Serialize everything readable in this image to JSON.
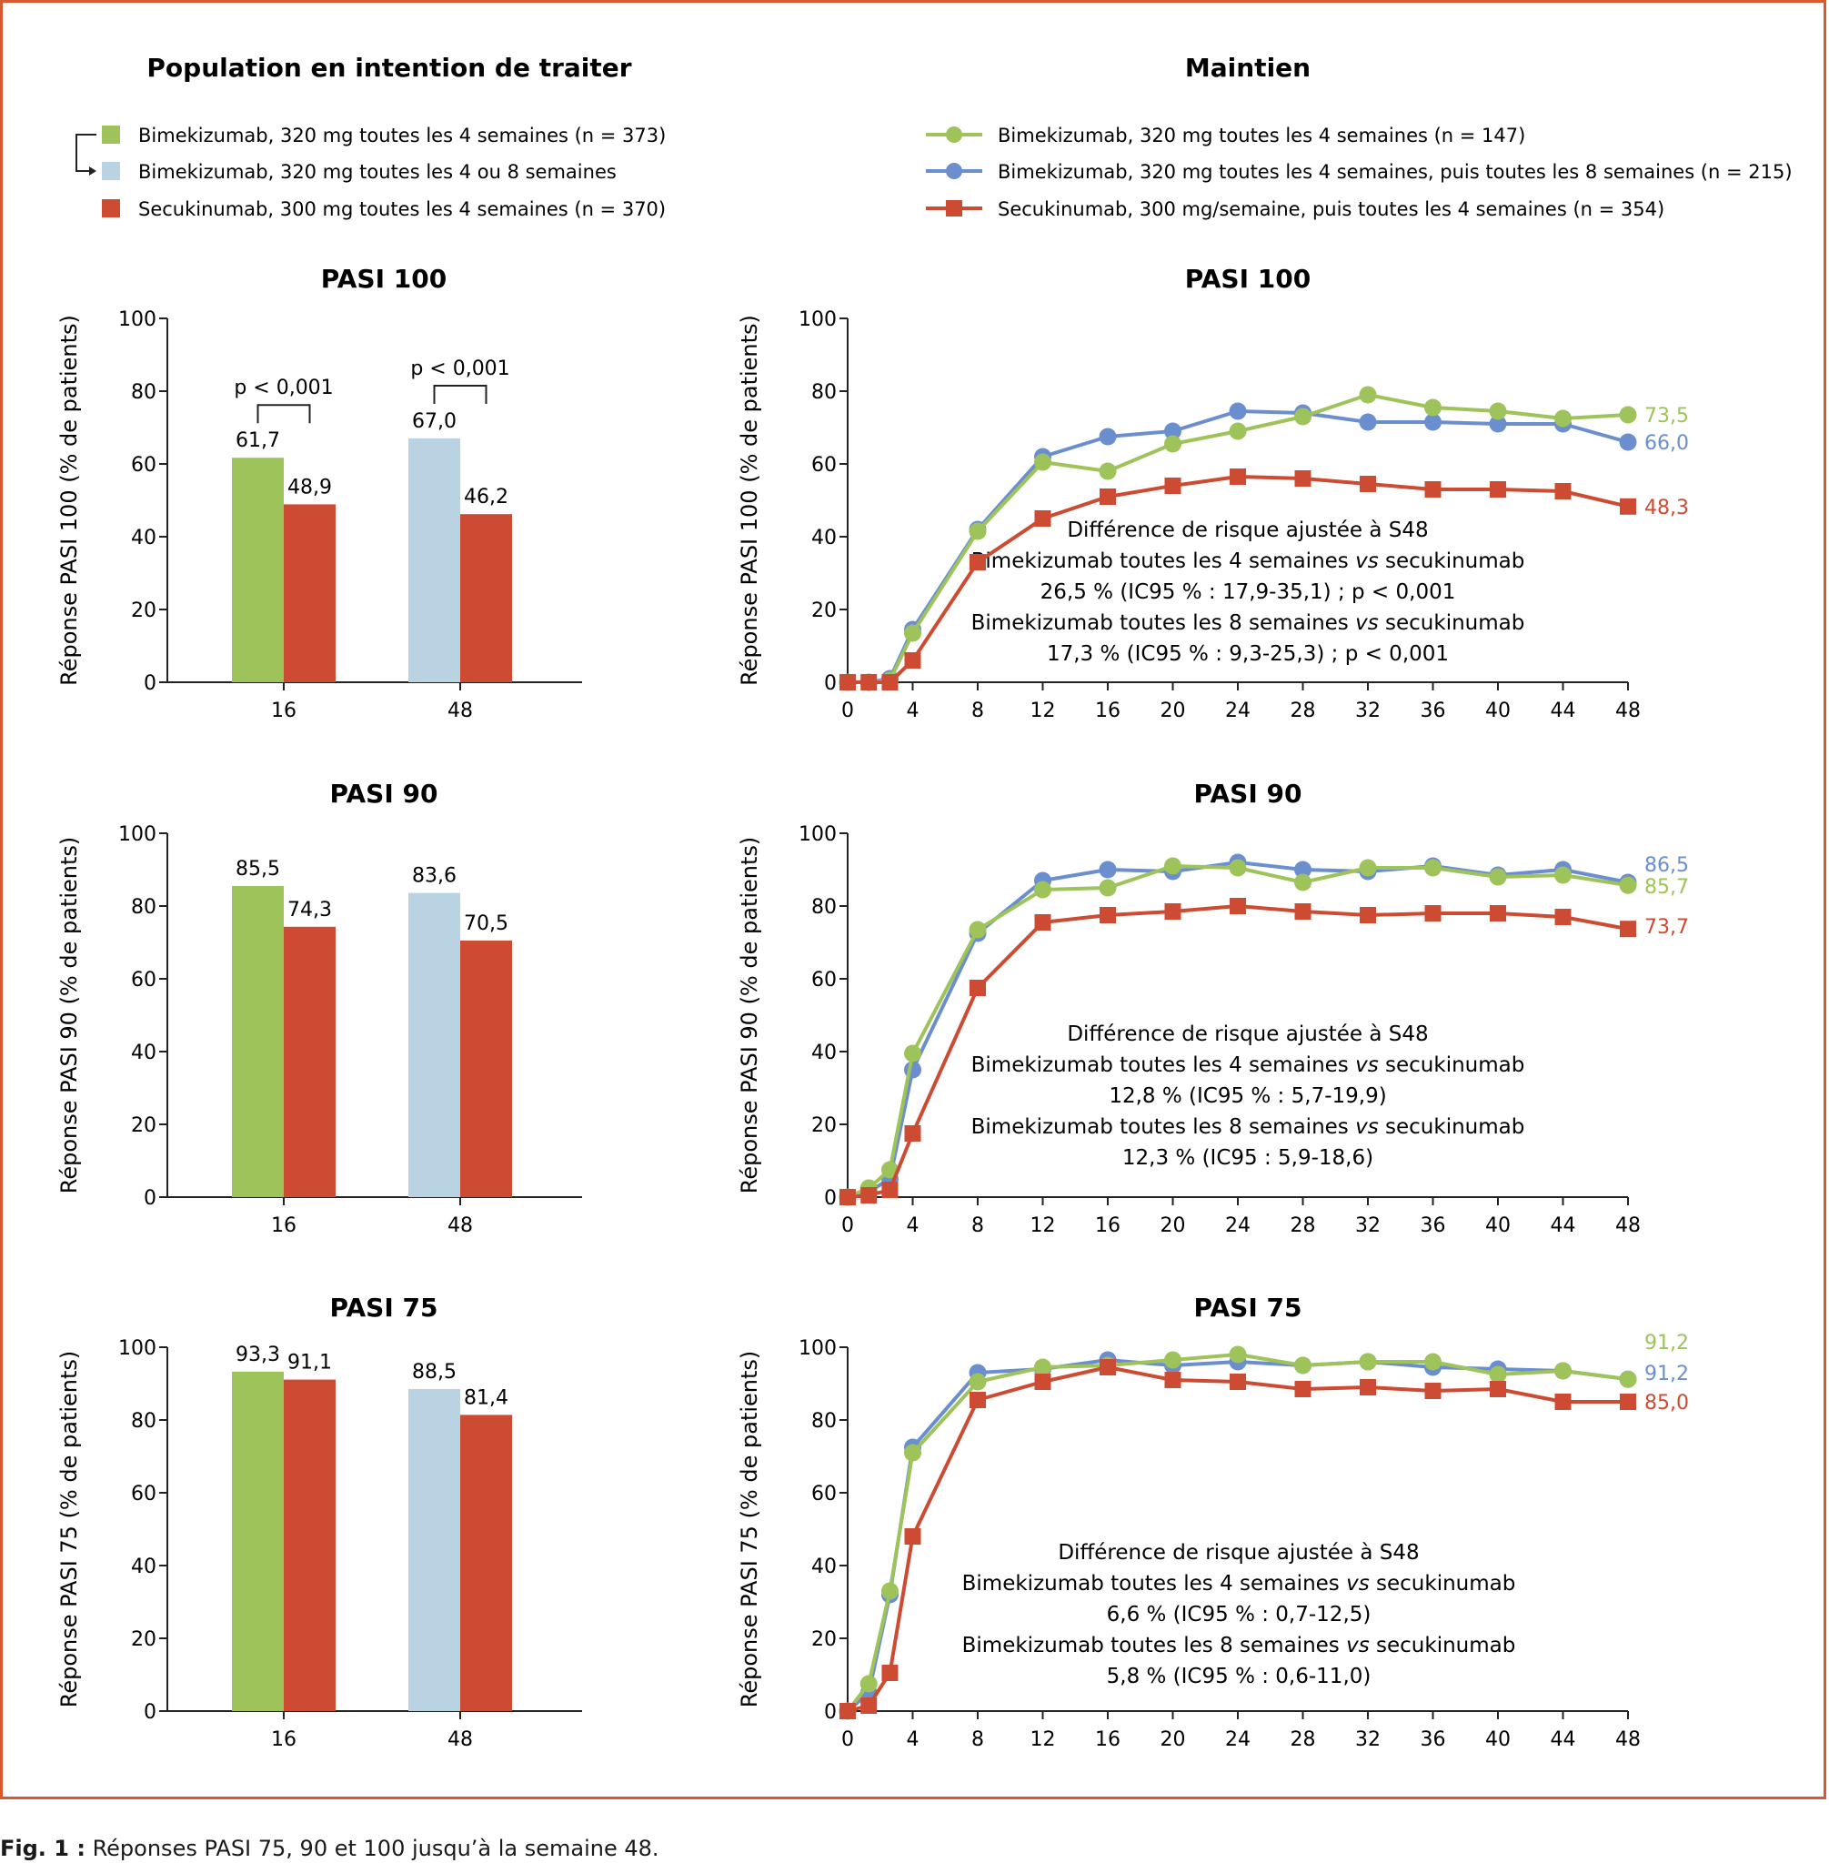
{
  "caption": {
    "prefix": "Fig. 1 :",
    "text": " Réponses PASI 75, 90 et 100 jusqu’à la semaine 48."
  },
  "colors": {
    "green": "#9dc35a",
    "lightblue": "#b9d3e3",
    "red": "#cc4b32",
    "blue": "#6b8fce",
    "frame": "#d8582f"
  },
  "left_header": {
    "title": "Population en intention de traiter",
    "legend": [
      "Bimekizumab, 320 mg toutes les 4 semaines (n = 373)",
      "Bimekizumab, 320 mg toutes les 4 ou 8 semaines",
      "Secukinumab, 300 mg toutes les 4 semaines (n = 370)"
    ]
  },
  "right_header": {
    "title": "Maintien",
    "legend": [
      "Bimekizumab, 320 mg toutes les 4 semaines (n = 147)",
      "Bimekizumab, 320 mg toutes les 4 semaines, puis toutes les 8 semaines (n = 215)",
      "Secukinumab, 300 mg/semaine, puis toutes les 4 semaines (n = 354)"
    ]
  },
  "chart_data": [
    {
      "type": "bar",
      "title": "PASI 100",
      "ylabel": "Réponse PASI 100 (% de patients)",
      "ylim": [
        0,
        100
      ],
      "yticks": [
        0,
        20,
        40,
        60,
        80,
        100
      ],
      "categories": [
        "16",
        "48"
      ],
      "series": [
        {
          "name": "Bimekizumab",
          "values": [
            61.7,
            67.0
          ],
          "labels": [
            "61,7",
            "67,0"
          ],
          "colors": [
            "green",
            "lightblue"
          ]
        },
        {
          "name": "Secukinumab",
          "values": [
            48.9,
            46.2
          ],
          "labels": [
            "48,9",
            "46,2"
          ],
          "colors": [
            "red",
            "red"
          ]
        }
      ],
      "pvalues": [
        "p < 0,001",
        "p < 0,001"
      ]
    },
    {
      "type": "line",
      "title": "PASI 100",
      "ylabel": "Réponse PASI 100 (% de patients)",
      "ylim": [
        0,
        100
      ],
      "yticks": [
        0,
        20,
        40,
        60,
        80,
        100
      ],
      "xlim": [
        0,
        48
      ],
      "xticks": [
        0,
        4,
        8,
        12,
        16,
        20,
        24,
        28,
        32,
        36,
        40,
        44,
        48
      ],
      "series": [
        {
          "name": "blue",
          "color": "blue",
          "marker": "circle",
          "x": [
            0,
            1.3,
            2.6,
            4,
            8,
            12,
            16,
            20,
            24,
            28,
            32,
            36,
            40,
            44,
            48
          ],
          "y": [
            0,
            0,
            1,
            14.5,
            42,
            62,
            67.5,
            69,
            74.5,
            74,
            71.5,
            71.5,
            71,
            71,
            66
          ]
        },
        {
          "name": "green",
          "color": "green",
          "marker": "circle",
          "x": [
            0,
            1.3,
            2.6,
            4,
            8,
            12,
            16,
            20,
            24,
            28,
            32,
            36,
            40,
            44,
            48
          ],
          "y": [
            0,
            0,
            0.5,
            13.5,
            41.5,
            60.5,
            58,
            65.5,
            69,
            73,
            79,
            75.5,
            74.5,
            72.5,
            73.5
          ]
        },
        {
          "name": "red",
          "color": "red",
          "marker": "square",
          "x": [
            0,
            1.3,
            2.6,
            4,
            8,
            12,
            16,
            20,
            24,
            28,
            32,
            36,
            40,
            44,
            48
          ],
          "y": [
            0,
            0,
            0,
            6,
            33,
            45,
            51,
            54,
            56.5,
            56,
            54.5,
            53,
            53,
            52.5,
            48.3
          ]
        }
      ],
      "end_labels": [
        {
          "text": "73,5",
          "color": "green",
          "y": 73.5
        },
        {
          "text": "66,0",
          "color": "blue",
          "y": 66.0
        },
        {
          "text": "48,3",
          "color": "red",
          "y": 48.3
        }
      ],
      "annotation": [
        "Différence de risque ajustée à S48",
        "Bimekizumab toutes les 4 semaines *vs* secukinumab",
        "26,5 % (IC95 % : 17,9-35,1) ; p < 0,001",
        "Bimekizumab toutes les 8 semaines *vs* secukinumab",
        "17,3 % (IC95 % : 9,3-25,3) ; p < 0,001"
      ]
    },
    {
      "type": "bar",
      "title": "PASI 90",
      "ylabel": "Réponse PASI 90 (% de patients)",
      "ylim": [
        0,
        100
      ],
      "yticks": [
        0,
        20,
        40,
        60,
        80,
        100
      ],
      "categories": [
        "16",
        "48"
      ],
      "series": [
        {
          "name": "Bimekizumab",
          "values": [
            85.5,
            83.6
          ],
          "labels": [
            "85,5",
            "83,6"
          ],
          "colors": [
            "green",
            "lightblue"
          ]
        },
        {
          "name": "Secukinumab",
          "values": [
            74.3,
            70.5
          ],
          "labels": [
            "74,3",
            "70,5"
          ],
          "colors": [
            "red",
            "red"
          ]
        }
      ]
    },
    {
      "type": "line",
      "title": "PASI 90",
      "ylabel": "Réponse PASI 90 (% de patients)",
      "ylim": [
        0,
        100
      ],
      "yticks": [
        0,
        20,
        40,
        60,
        80,
        100
      ],
      "xlim": [
        0,
        48
      ],
      "xticks": [
        0,
        4,
        8,
        12,
        16,
        20,
        24,
        28,
        32,
        36,
        40,
        44,
        48
      ],
      "series": [
        {
          "name": "blue",
          "color": "blue",
          "marker": "circle",
          "x": [
            0,
            1.3,
            2.6,
            4,
            8,
            12,
            16,
            20,
            24,
            28,
            32,
            36,
            40,
            44,
            48
          ],
          "y": [
            0,
            1.5,
            5,
            35,
            72.5,
            87,
            90,
            89.5,
            92,
            90,
            89.5,
            91,
            88.5,
            90,
            86.5
          ]
        },
        {
          "name": "green",
          "color": "green",
          "marker": "circle",
          "x": [
            0,
            1.3,
            2.6,
            4,
            8,
            12,
            16,
            20,
            24,
            28,
            32,
            36,
            40,
            44,
            48
          ],
          "y": [
            0,
            2.5,
            7.5,
            39.5,
            73.5,
            84.5,
            85,
            91,
            90.5,
            86.5,
            90.5,
            90.5,
            88,
            88.5,
            85.7
          ]
        },
        {
          "name": "red",
          "color": "red",
          "marker": "square",
          "x": [
            0,
            1.3,
            2.6,
            4,
            8,
            12,
            16,
            20,
            24,
            28,
            32,
            36,
            40,
            44,
            48
          ],
          "y": [
            0,
            0.5,
            2,
            17.5,
            57.5,
            75.5,
            77.5,
            78.5,
            80,
            78.5,
            77.5,
            78,
            78,
            77,
            73.7
          ]
        }
      ],
      "end_labels": [
        {
          "text": "86,5",
          "color": "blue",
          "y": 91.5
        },
        {
          "text": "85,7",
          "color": "green",
          "y": 85.5
        },
        {
          "text": "73,7",
          "color": "red",
          "y": 74.5
        }
      ],
      "annotation": [
        "Différence de risque ajustée à S48",
        "Bimekizumab toutes les 4 semaines *vs* secukinumab",
        "12,8 % (IC95 % : 5,7-19,9)",
        "Bimekizumab toutes les 8 semaines *vs* secukinumab",
        "12,3 % (IC95 : 5,9-18,6)"
      ]
    },
    {
      "type": "bar",
      "title": "PASI 75",
      "ylabel": "Réponse PASI 75 (% de patients)",
      "ylim": [
        0,
        100
      ],
      "yticks": [
        0,
        20,
        40,
        60,
        80,
        100
      ],
      "categories": [
        "16",
        "48"
      ],
      "series": [
        {
          "name": "Bimekizumab",
          "values": [
            93.3,
            88.5
          ],
          "labels": [
            "93,3",
            "88,5"
          ],
          "colors": [
            "green",
            "lightblue"
          ]
        },
        {
          "name": "Secukinumab",
          "values": [
            91.1,
            81.4
          ],
          "labels": [
            "91,1",
            "81,4"
          ],
          "colors": [
            "red",
            "red"
          ]
        }
      ]
    },
    {
      "type": "line",
      "title": "PASI 75",
      "ylabel": "Réponse PASI 75 (% de patients)",
      "ylim": [
        0,
        100
      ],
      "yticks": [
        0,
        20,
        40,
        60,
        80,
        100
      ],
      "xlim": [
        0,
        48
      ],
      "xticks": [
        0,
        4,
        8,
        12,
        16,
        20,
        24,
        28,
        32,
        36,
        40,
        44,
        48
      ],
      "series": [
        {
          "name": "blue",
          "color": "blue",
          "marker": "circle",
          "x": [
            0,
            1.3,
            2.6,
            4,
            8,
            12,
            16,
            20,
            24,
            28,
            32,
            36,
            40,
            44,
            48
          ],
          "y": [
            0,
            5,
            32,
            72.5,
            93,
            94,
            96.5,
            95,
            96,
            95,
            96,
            94.5,
            94,
            93.5,
            91.2
          ]
        },
        {
          "name": "green",
          "color": "green",
          "marker": "circle",
          "x": [
            0,
            1.3,
            2.6,
            4,
            8,
            12,
            16,
            20,
            24,
            28,
            32,
            36,
            40,
            44,
            48
          ],
          "y": [
            0,
            7.5,
            33,
            71,
            90.5,
            94.5,
            95,
            96.5,
            98,
            95,
            96,
            96,
            92.5,
            93.5,
            91.2
          ]
        },
        {
          "name": "red",
          "color": "red",
          "marker": "square",
          "x": [
            0,
            1.3,
            2.6,
            4,
            8,
            12,
            16,
            20,
            24,
            28,
            32,
            36,
            40,
            44,
            48
          ],
          "y": [
            0,
            1.5,
            10.5,
            48,
            85.5,
            90.5,
            94.5,
            91,
            90.5,
            88.5,
            89,
            88,
            88.5,
            85,
            85
          ]
        }
      ],
      "end_labels": [
        {
          "text": "91,2",
          "color": "green",
          "y": 101.5
        },
        {
          "text": "91,2",
          "color": "blue",
          "y": 93
        },
        {
          "text": "85,0",
          "color": "red",
          "y": 85
        }
      ],
      "annotation": [
        "Différence de risque ajustée à S48",
        "Bimekizumab toutes les 4 semaines *vs* secukinumab",
        "6,6 % (IC95 % : 0,7-12,5)",
        "Bimekizumab toutes les 8 semaines *vs* secukinumab",
        "5,8 % (IC95 % : 0,6-11,0)"
      ]
    }
  ]
}
